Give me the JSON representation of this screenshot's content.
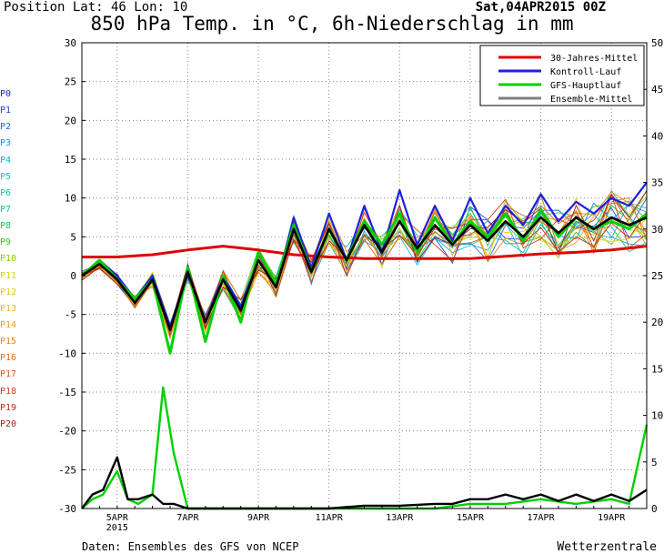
{
  "header": {
    "position": "Position  Lat: 46 Lon: 10",
    "date": "Sat,04APR2015 00Z",
    "title": "850 hPa Temp. in °C, 6h-Niederschlag in mm"
  },
  "footer": {
    "source": "Daten: Ensembles des GFS von NCEP",
    "brand": "Wetterzentrale"
  },
  "members": [
    {
      "label": "P0",
      "color": "#2222cc"
    },
    {
      "label": "P1",
      "color": "#1a44dd"
    },
    {
      "label": "P2",
      "color": "#1a66e0"
    },
    {
      "label": "P3",
      "color": "#1a8ee0"
    },
    {
      "label": "P4",
      "color": "#18a8d8"
    },
    {
      "label": "P5",
      "color": "#19bcc8"
    },
    {
      "label": "P6",
      "color": "#1ac0a8"
    },
    {
      "label": "P7",
      "color": "#1ac088"
    },
    {
      "label": "P8",
      "color": "#22c050"
    },
    {
      "label": "P9",
      "color": "#44c020"
    },
    {
      "label": "P10",
      "color": "#88c818"
    },
    {
      "label": "P11",
      "color": "#d8d818"
    },
    {
      "label": "P12",
      "color": "#e8c818"
    },
    {
      "label": "P13",
      "color": "#e8b418"
    },
    {
      "label": "P14",
      "color": "#e8a018"
    },
    {
      "label": "P15",
      "color": "#e88818"
    },
    {
      "label": "P16",
      "color": "#e07018"
    },
    {
      "label": "P17",
      "color": "#d85818"
    },
    {
      "label": "P18",
      "color": "#c84018"
    },
    {
      "label": "P19",
      "color": "#b83018"
    },
    {
      "label": "P20",
      "color": "#a82018"
    }
  ],
  "chart_data": {
    "type": "line",
    "title": "850 hPa Temp. in °C, 6h-Niederschlag in mm",
    "y_left_range": [
      -30,
      30
    ],
    "y_left_ticks": [
      "30",
      "25",
      "20",
      "15",
      "10",
      "5",
      "0",
      "-5",
      "-10",
      "-15",
      "-20",
      "-25",
      "-30"
    ],
    "y_right_range": [
      0,
      50
    ],
    "y_right_ticks": [
      "50",
      "45",
      "40",
      "35",
      "30",
      "25",
      "20",
      "15",
      "10",
      "5",
      "0"
    ],
    "x_range_days": [
      4.0,
      20.0
    ],
    "x_tick_labels": [
      {
        "day": 5,
        "label": "5APR"
      },
      {
        "day": 7,
        "label": "7APR"
      },
      {
        "day": 9,
        "label": "9APR"
      },
      {
        "day": 11,
        "label": "11APR"
      },
      {
        "day": 13,
        "label": "13APR"
      },
      {
        "day": 15,
        "label": "15APR"
      },
      {
        "day": 17,
        "label": "17APR"
      },
      {
        "day": 19,
        "label": "19APR"
      }
    ],
    "x_year_label": "2015",
    "legend_position": "top-right",
    "grid": "dotted",
    "series": [
      {
        "name": "30-Jahres-Mittel",
        "color": "#e00000",
        "kind": "temperature",
        "x": [
          4,
          5,
          6,
          7,
          8,
          9,
          10,
          11,
          12,
          13,
          14,
          15,
          16,
          17,
          18,
          19,
          20
        ],
        "y": [
          2.4,
          2.4,
          2.7,
          3.3,
          3.8,
          3.3,
          2.7,
          2.4,
          2.2,
          2.2,
          2.2,
          2.2,
          2.5,
          2.8,
          3.0,
          3.3,
          3.8
        ]
      },
      {
        "name": "Kontroll-Lauf",
        "color": "#2020e0",
        "kind": "temperature",
        "x": [
          4,
          4.5,
          5,
          5.5,
          6,
          6.5,
          7,
          7.5,
          8,
          8.5,
          9,
          9.5,
          10,
          10.5,
          11,
          11.5,
          12,
          12.5,
          13,
          13.5,
          14,
          14.5,
          15,
          15.5,
          16,
          16.5,
          17,
          17.5,
          18,
          18.5,
          19,
          19.5,
          20
        ],
        "y": [
          0,
          2,
          0,
          -3,
          0,
          -6.5,
          0,
          -6,
          0,
          -4,
          2,
          -1.5,
          7.5,
          1,
          8,
          2,
          9,
          3,
          11,
          4,
          9,
          4.5,
          10,
          5.5,
          9,
          6.5,
          10.5,
          7,
          9.5,
          8,
          10,
          9,
          12
        ]
      },
      {
        "name": "GFS-Hauptlauf",
        "color": "#00d000",
        "kind": "temperature",
        "x": [
          4,
          4.5,
          5,
          5.5,
          6,
          6.5,
          7,
          7.5,
          8,
          8.5,
          9,
          9.5,
          10,
          10.5,
          11,
          11.5,
          12,
          12.5,
          13,
          13.5,
          14,
          14.5,
          15,
          15.5,
          16,
          16.5,
          17,
          17.5,
          18,
          18.5,
          19,
          19.5,
          20
        ],
        "y": [
          0,
          2,
          -0.5,
          -3,
          -0.5,
          -10,
          1,
          -8.5,
          0,
          -6,
          3,
          -1,
          6.5,
          0.5,
          6,
          2,
          7,
          4,
          8,
          3,
          7.5,
          4,
          7,
          5,
          8,
          4.5,
          8.5,
          5,
          7.5,
          6,
          7,
          6,
          8
        ]
      },
      {
        "name": "Ensemble-Mittel",
        "color": "#000000",
        "kind": "temperature",
        "x": [
          4,
          4.5,
          5,
          5.5,
          6,
          6.5,
          7,
          7.5,
          8,
          8.5,
          9,
          9.5,
          10,
          10.5,
          11,
          11.5,
          12,
          12.5,
          13,
          13.5,
          14,
          14.5,
          15,
          15.5,
          16,
          16.5,
          17,
          17.5,
          18,
          18.5,
          19,
          19.5,
          20
        ],
        "y": [
          0,
          1.5,
          -0.5,
          -3.5,
          -0.5,
          -7,
          0.5,
          -6,
          -0.5,
          -4.5,
          2,
          -1.5,
          6,
          0.5,
          6,
          2,
          6.5,
          3,
          7,
          3.5,
          6.5,
          4,
          6.5,
          4.5,
          7,
          5,
          7.5,
          5.5,
          7.5,
          6,
          7.5,
          6.5,
          7.5
        ]
      },
      {
        "name": "GFS-Hauptlauf-Niederschlag",
        "color": "#00d000",
        "kind": "precipitation",
        "x": [
          4,
          4.3,
          4.6,
          5,
          5.3,
          5.6,
          6,
          6.3,
          6.6,
          7,
          7.3,
          7.6,
          8,
          8.5,
          9,
          10,
          11,
          12,
          13,
          14,
          15,
          16,
          17,
          18,
          19,
          19.5,
          20
        ],
        "y": [
          0,
          1,
          1.5,
          4,
          1,
          0.5,
          1.5,
          13,
          6,
          0,
          0,
          0,
          0,
          0,
          0,
          0,
          0,
          0,
          0,
          0,
          0.5,
          0.5,
          1,
          0.5,
          1,
          0.5,
          9
        ]
      },
      {
        "name": "Ensemble-Mittel-Niederschlag",
        "color": "#000000",
        "kind": "precipitation",
        "x": [
          4,
          4.3,
          4.6,
          5,
          5.3,
          5.6,
          6,
          6.3,
          6.6,
          7,
          7.5,
          8,
          9,
          10,
          11,
          12,
          13,
          14,
          14.5,
          15,
          15.5,
          16,
          16.5,
          17,
          17.5,
          18,
          18.5,
          19,
          19.5,
          20
        ],
        "y": [
          0,
          1.5,
          2,
          5.5,
          1,
          1,
          1.5,
          0.5,
          0.5,
          0,
          0,
          0,
          0,
          0,
          0,
          0.3,
          0.3,
          0.5,
          0.5,
          1,
          1,
          1.5,
          1,
          1.5,
          0.8,
          1.5,
          0.8,
          1.5,
          0.8,
          2
        ]
      }
    ]
  }
}
